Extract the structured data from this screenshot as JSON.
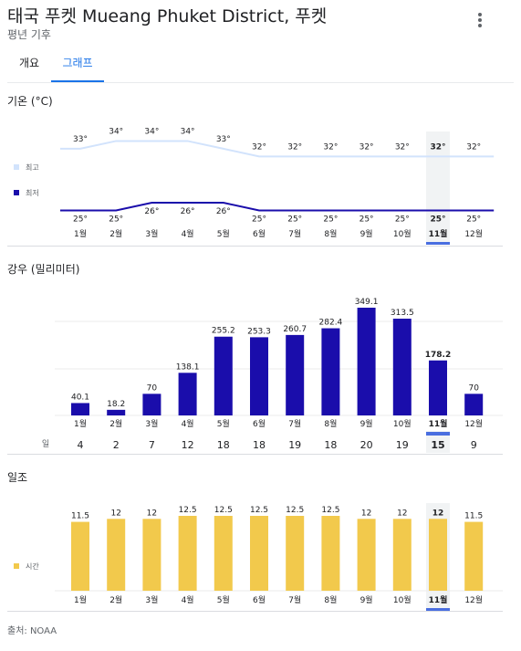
{
  "header": {
    "title": "태국 푸켓 Mueang Phuket District, 푸켓",
    "subtitle": "평년 기후",
    "menu_icon": "more-vert-icon"
  },
  "tabs": [
    {
      "label": "개요",
      "selected": false
    },
    {
      "label": "그래프",
      "selected": true
    }
  ],
  "months": [
    "1월",
    "2월",
    "3월",
    "4월",
    "5월",
    "6월",
    "7월",
    "8월",
    "9월",
    "10월",
    "11월",
    "12월"
  ],
  "highlighted_month_index": 10,
  "colors": {
    "high_line": "#d2e3fc",
    "low_line": "#1a0dab",
    "rain_bar": "#1a0dab",
    "sun_bar": "#f2c94c",
    "highlight_bg": "#f1f3f4",
    "highlight_underline": "#4a6ee0"
  },
  "chart_data": [
    {
      "type": "line",
      "title": "기온 (°C)",
      "categories": [
        "1월",
        "2월",
        "3월",
        "4월",
        "5월",
        "6월",
        "7월",
        "8월",
        "9월",
        "10월",
        "11월",
        "12월"
      ],
      "series": [
        {
          "name": "최고",
          "values": [
            33,
            34,
            34,
            34,
            33,
            32,
            32,
            32,
            32,
            32,
            32,
            32
          ],
          "labels": [
            "33°",
            "34°",
            "34°",
            "34°",
            "33°",
            "32°",
            "32°",
            "32°",
            "32°",
            "32°",
            "32°",
            "32°"
          ]
        },
        {
          "name": "최저",
          "values": [
            25,
            25,
            26,
            26,
            26,
            25,
            25,
            25,
            25,
            25,
            25,
            25
          ],
          "labels": [
            "25°",
            "25°",
            "26°",
            "26°",
            "26°",
            "25°",
            "25°",
            "25°",
            "25°",
            "25°",
            "25°",
            "25°"
          ]
        }
      ],
      "legend": "left"
    },
    {
      "type": "bar",
      "title": "강우 (밀리미터)",
      "categories": [
        "1월",
        "2월",
        "3월",
        "4월",
        "5월",
        "6월",
        "7월",
        "8월",
        "9월",
        "10월",
        "11월",
        "12월"
      ],
      "values": [
        40.1,
        18.2,
        70,
        138.1,
        255.2,
        253.3,
        260.7,
        282.4,
        349.1,
        313.5,
        178.2,
        70
      ],
      "value_labels": [
        "40.1",
        "18.2",
        "70",
        "138.1",
        "255.2",
        "253.3",
        "260.7",
        "282.4",
        "349.1",
        "313.5",
        "178.2",
        "70"
      ],
      "days_label": "일",
      "days": [
        "4",
        "2",
        "7",
        "12",
        "18",
        "18",
        "19",
        "18",
        "20",
        "19",
        "15",
        "9"
      ]
    },
    {
      "type": "bar",
      "title": "일조",
      "categories": [
        "1월",
        "2월",
        "3월",
        "4월",
        "5월",
        "6월",
        "7월",
        "8월",
        "9월",
        "10월",
        "11월",
        "12월"
      ],
      "series": [
        {
          "name": "시간",
          "values": [
            11.5,
            12,
            12,
            12.5,
            12.5,
            12.5,
            12.5,
            12.5,
            12,
            12,
            12,
            11.5
          ],
          "labels": [
            "11.5",
            "12",
            "12",
            "12.5",
            "12.5",
            "12.5",
            "12.5",
            "12.5",
            "12",
            "12",
            "12",
            "11.5"
          ]
        }
      ],
      "legend": "left"
    }
  ],
  "source": "출처: NOAA"
}
